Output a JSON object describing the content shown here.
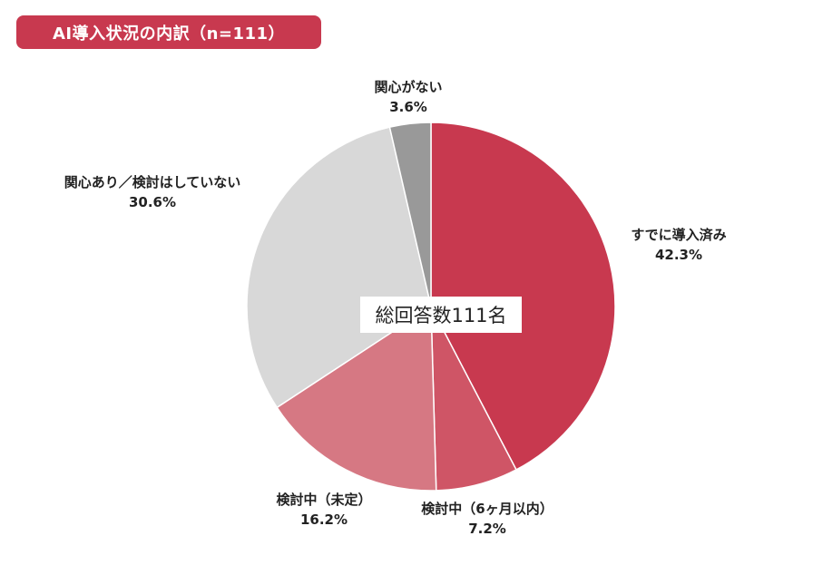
{
  "title": "AI導入状況の内訳（n=111）",
  "colors": {
    "title_bg": "#c8394f"
  },
  "chart_data": {
    "type": "pie",
    "center_label": "総回答数111名",
    "slices": [
      {
        "label": "すでに導入済み",
        "value": 42.3,
        "value_label": "42.3%",
        "color": "#c8394f"
      },
      {
        "label": "検討中（6ヶ月以内）",
        "value": 7.2,
        "value_label": "7.2%",
        "color": "#cf5566"
      },
      {
        "label": "検討中（未定）",
        "value": 16.2,
        "value_label": "16.2%",
        "color": "#d67883"
      },
      {
        "label": "関心あり／検討はしていない",
        "value": 30.6,
        "value_label": "30.6%",
        "color": "#d8d8d8"
      },
      {
        "label": "関心がない",
        "value": 3.6,
        "value_label": "3.6%",
        "color": "#999999"
      }
    ]
  }
}
